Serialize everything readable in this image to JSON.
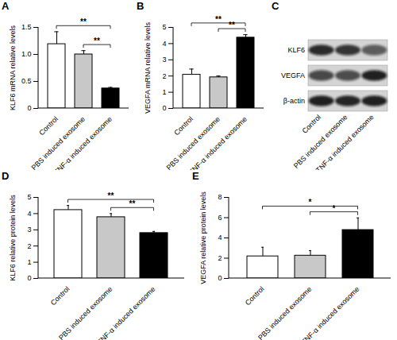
{
  "chart_data": [
    {
      "type": "bar",
      "title": "A",
      "ylabel": "KLF6 mRNA relative levels",
      "categories": [
        "Control",
        "PBS induced exosome",
        "TNF-α induced exosome"
      ],
      "values": [
        1.19,
        1.0,
        0.37
      ],
      "errors": [
        0.23,
        0.07,
        0.02
      ],
      "colors": [
        "#ffffff",
        "#c8c8c8",
        "#000000"
      ],
      "ylim": [
        0,
        1.5
      ],
      "yticks": [
        0,
        0.5,
        {
          "value": 1,
          "label": "1.0"
        },
        1.5
      ],
      "significance": [
        {
          "from": "PBS induced exosome",
          "to": "TNF-α induced exosome",
          "label": "**"
        },
        {
          "from": "Control",
          "to": "TNF-α induced exosome",
          "label": "**"
        }
      ]
    },
    {
      "type": "bar",
      "title": "B",
      "ylabel": "VEGFA mRNA relative levels",
      "categories": [
        "Control",
        "PBS induced exosome",
        "TNF-α induced exosome"
      ],
      "values": [
        2.08,
        1.92,
        4.37
      ],
      "errors": [
        0.35,
        0.08,
        0.18
      ],
      "colors": [
        "#ffffff",
        "#c8c8c8",
        "#000000"
      ],
      "ylim": [
        0,
        5
      ],
      "yticks": [
        0,
        1,
        2,
        3,
        4,
        5
      ],
      "significance": [
        {
          "from": "PBS induced exosome",
          "to": "TNF-α induced exosome",
          "label": "**"
        },
        {
          "from": "Control",
          "to": "TNF-α induced exosome",
          "label": "**"
        }
      ]
    },
    {
      "type": "bar",
      "title": "D",
      "ylabel": "KLF6 relative protein levels",
      "categories": [
        "Control",
        "PBS induced exosome",
        "TNF-α induced exosome"
      ],
      "values": [
        4.22,
        3.78,
        2.8
      ],
      "errors": [
        0.28,
        0.22,
        0.1
      ],
      "colors": [
        "#ffffff",
        "#c8c8c8",
        "#000000"
      ],
      "ylim": [
        0,
        5
      ],
      "yticks": [
        0,
        1,
        2,
        3,
        4,
        5
      ],
      "significance": [
        {
          "from": "PBS induced exosome",
          "to": "TNF-α induced exosome",
          "label": "**"
        },
        {
          "from": "Control",
          "to": "TNF-α induced exosome",
          "label": "**"
        }
      ]
    },
    {
      "type": "bar",
      "title": "E",
      "ylabel": "VEGFA relative protein levels",
      "categories": [
        "Control",
        "PBS induced exosome",
        "TNF-α induced exosome"
      ],
      "values": [
        2.18,
        2.25,
        4.78
      ],
      "errors": [
        0.9,
        0.5,
        1.2
      ],
      "colors": [
        "#ffffff",
        "#c8c8c8",
        "#000000"
      ],
      "ylim": [
        0,
        8
      ],
      "yticks": [
        0,
        2,
        4,
        6,
        8
      ],
      "significance": [
        {
          "from": "PBS induced exosome",
          "to": "TNF-α induced exosome",
          "label": "*"
        },
        {
          "from": "Control",
          "to": "TNF-α induced exosome",
          "label": "*"
        }
      ]
    }
  ],
  "blot": {
    "title": "C",
    "rows": [
      "KLF6",
      "VEGFA",
      "β-actin"
    ],
    "lanes": [
      "Control",
      "PBS induced exosome",
      "TNF-α induced exosome"
    ]
  }
}
